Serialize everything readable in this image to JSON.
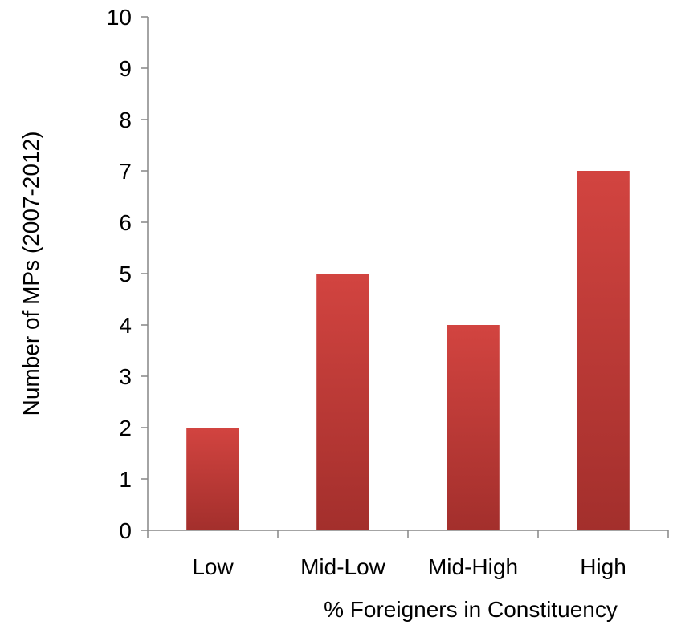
{
  "chart_data": {
    "type": "bar",
    "categories": [
      "Low",
      "Mid-Low",
      "Mid-High",
      "High"
    ],
    "values": [
      2,
      5,
      4,
      7
    ],
    "xlabel": "% Foreigners in Constituency",
    "ylabel": "Number of MPs (2007-2012)",
    "ylim": [
      0,
      10
    ],
    "yticks": [
      0,
      1,
      2,
      3,
      4,
      5,
      6,
      7,
      8,
      9,
      10
    ],
    "grid": false,
    "legend": "none",
    "bar_color_top": "#d24440",
    "bar_color_bottom": "#a32f2c"
  }
}
